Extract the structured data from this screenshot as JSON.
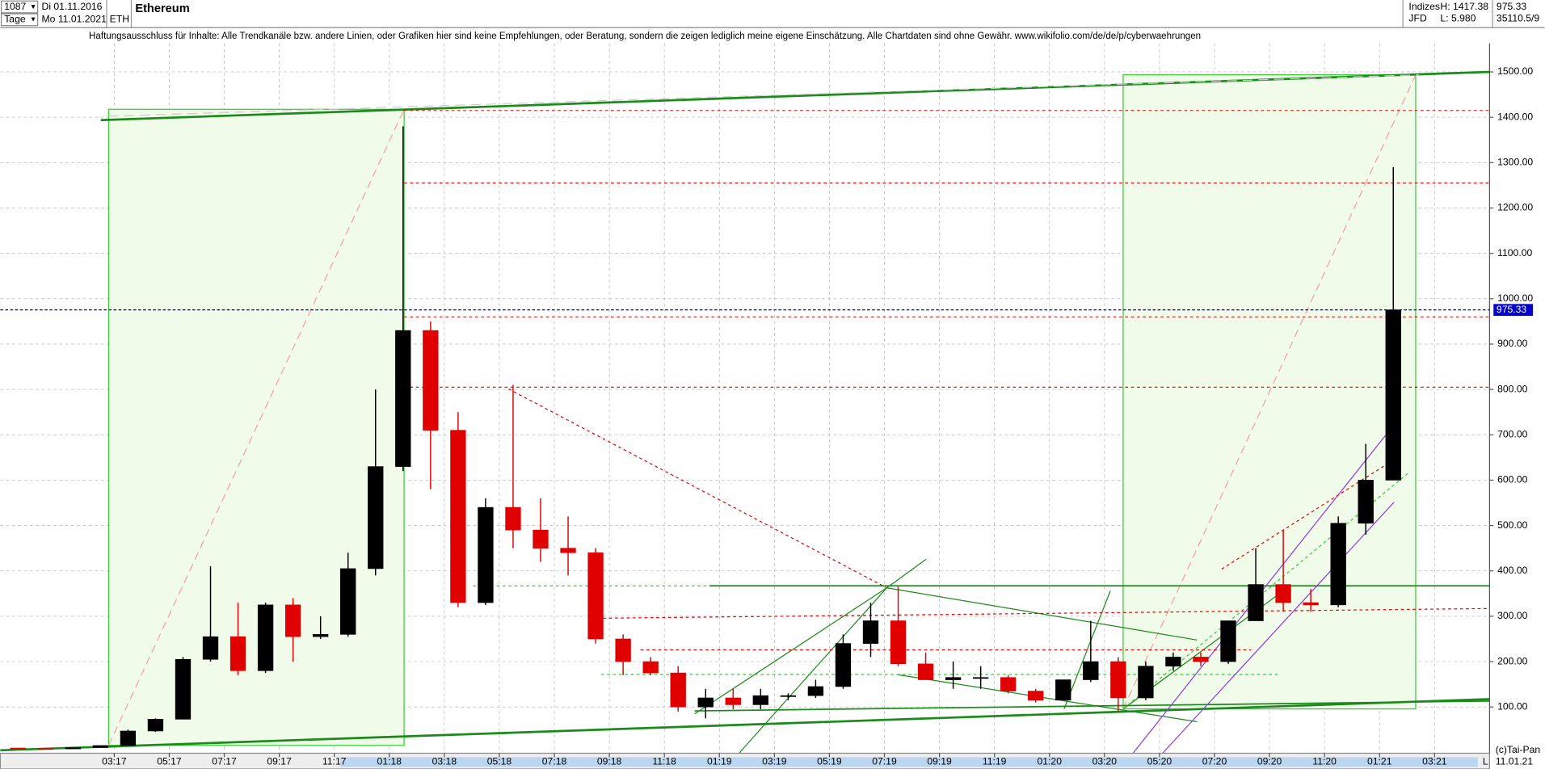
{
  "header": {
    "count": "1087",
    "date_from": "Di 01.11.2016",
    "unit": "Tage",
    "date_to": "Mo 11.01.2021",
    "symbol": "ETH",
    "category": "Indizes",
    "exchange": "JFD",
    "high": "H: 1417.38",
    "low": "L: 5.980",
    "last": "975.33",
    "volume": "35110.5/9"
  },
  "disclaimer": "Haftungsausschluss für Inhalte: Alle Trendkanäle bzw. andere Linien, oder Grafiken hier sind keine Empfehlungen, oder Beratung, sondern die zeigen lediglich meine eigene Einschätzung. Alle Chartdaten sind ohne Gewähr.  www.wikifolio.com/de/de/p/cyberwaehrungen",
  "footer": {
    "brand": "(c)Tai-Pan",
    "date": "11.01.21",
    "scale": "L"
  },
  "chart_data": {
    "type": "candlestick",
    "title": "Ethereum",
    "x": [
      "2016-11",
      "2016-12",
      "2017-01",
      "2017-02",
      "2017-03",
      "2017-04",
      "2017-05",
      "2017-06",
      "2017-07",
      "2017-08",
      "2017-09",
      "2017-10",
      "2017-11",
      "2017-12",
      "2018-01",
      "2018-02",
      "2018-03",
      "2018-04",
      "2018-05",
      "2018-06",
      "2018-07",
      "2018-08",
      "2018-09",
      "2018-10",
      "2018-11",
      "2018-12",
      "2019-01",
      "2019-02",
      "2019-03",
      "2019-04",
      "2019-05",
      "2019-06",
      "2019-07",
      "2019-08",
      "2019-09",
      "2019-10",
      "2019-11",
      "2019-12",
      "2020-01",
      "2020-02",
      "2020-03",
      "2020-04",
      "2020-05",
      "2020-06",
      "2020-07",
      "2020-08",
      "2020-09",
      "2020-10",
      "2020-11",
      "2020-12",
      "2021-01"
    ],
    "open": [
      9.5,
      8.5,
      7.6,
      10.5,
      15,
      47,
      73,
      205,
      255,
      180,
      325,
      255,
      260,
      405,
      630,
      930,
      710,
      330,
      540,
      490,
      450,
      440,
      250,
      200,
      175,
      100,
      120,
      105,
      125,
      125,
      145,
      240,
      290,
      195,
      160,
      165,
      165,
      135,
      115,
      160,
      200,
      120,
      190,
      210,
      200,
      290,
      370,
      330,
      325,
      505,
      600
    ],
    "high": [
      10,
      9,
      11,
      15,
      50,
      75,
      210,
      410,
      330,
      330,
      340,
      300,
      440,
      800,
      1380,
      950,
      750,
      560,
      810,
      560,
      520,
      450,
      260,
      210,
      190,
      140,
      140,
      140,
      130,
      160,
      260,
      330,
      365,
      220,
      200,
      190,
      170,
      140,
      160,
      290,
      210,
      200,
      220,
      220,
      290,
      450,
      490,
      360,
      520,
      680,
      1290
    ],
    "low": [
      8.5,
      6,
      7.6,
      10.3,
      15,
      45,
      73,
      200,
      170,
      175,
      200,
      250,
      255,
      390,
      620,
      580,
      320,
      325,
      450,
      420,
      390,
      240,
      170,
      170,
      90,
      75,
      95,
      95,
      115,
      120,
      140,
      210,
      190,
      160,
      140,
      140,
      130,
      110,
      115,
      155,
      90,
      115,
      180,
      190,
      195,
      290,
      310,
      310,
      320,
      480,
      600
    ],
    "close": [
      8.5,
      7.6,
      10.5,
      15,
      47,
      73,
      205,
      255,
      180,
      325,
      255,
      260,
      405,
      630,
      930,
      710,
      330,
      540,
      490,
      450,
      440,
      250,
      200,
      175,
      100,
      120,
      105,
      125,
      125,
      145,
      240,
      290,
      195,
      160,
      165,
      165,
      135,
      115,
      160,
      200,
      120,
      190,
      210,
      200,
      290,
      370,
      330,
      325,
      505,
      600,
      975.33
    ],
    "up_color": "#000000",
    "down_color": "#e00000",
    "xlim": [
      "2016-11",
      "2021-05"
    ],
    "xticks": [
      {
        "value": "2017-03",
        "label": "03:17"
      },
      {
        "value": "2017-05",
        "label": "05:17"
      },
      {
        "value": "2017-07",
        "label": "07:17"
      },
      {
        "value": "2017-09",
        "label": "09:17"
      },
      {
        "value": "2017-11",
        "label": "11:17"
      },
      {
        "value": "2018-01",
        "label": "01:18"
      },
      {
        "value": "2018-03",
        "label": "03:18"
      },
      {
        "value": "2018-05",
        "label": "05:18"
      },
      {
        "value": "2018-07",
        "label": "07:18"
      },
      {
        "value": "2018-09",
        "label": "09:18"
      },
      {
        "value": "2018-11",
        "label": "11:18"
      },
      {
        "value": "2019-01",
        "label": "01:19"
      },
      {
        "value": "2019-03",
        "label": "03:19"
      },
      {
        "value": "2019-05",
        "label": "05:19"
      },
      {
        "value": "2019-07",
        "label": "07:19"
      },
      {
        "value": "2019-09",
        "label": "09:19"
      },
      {
        "value": "2019-11",
        "label": "11:19"
      },
      {
        "value": "2020-01",
        "label": "01:20"
      },
      {
        "value": "2020-03",
        "label": "03:20"
      },
      {
        "value": "2020-05",
        "label": "05:20"
      },
      {
        "value": "2020-07",
        "label": "07:20"
      },
      {
        "value": "2020-09",
        "label": "09:20"
      },
      {
        "value": "2020-11",
        "label": "11:20"
      },
      {
        "value": "2021-01",
        "label": "01:21"
      },
      {
        "value": "2021-03",
        "label": "03:21"
      }
    ],
    "ylim": [
      -2,
      1563
    ],
    "yticks": [
      {
        "value": 100,
        "label": "100.00"
      },
      {
        "value": 200,
        "label": "200.00"
      },
      {
        "value": 300,
        "label": "300.00"
      },
      {
        "value": 400,
        "label": "400.00"
      },
      {
        "value": 500,
        "label": "500.00"
      },
      {
        "value": 600,
        "label": "600.00"
      },
      {
        "value": 700,
        "label": "700.00"
      },
      {
        "value": 800,
        "label": "800.00"
      },
      {
        "value": 900,
        "label": "900.00"
      },
      {
        "value": 1000,
        "label": "1000.00"
      },
      {
        "value": 1100,
        "label": "1100.00"
      },
      {
        "value": 1200,
        "label": "1200.00"
      },
      {
        "value": 1300,
        "label": "1300.00"
      },
      {
        "value": 1400,
        "label": "1400.00"
      },
      {
        "value": 1500,
        "label": "1500.00"
      }
    ],
    "grid": true,
    "last_price": {
      "value": 975.33,
      "label": "975.33",
      "color": "#0000cc"
    },
    "levels": {
      "color": "#e00000",
      "values": [
        1415,
        1255,
        960,
        805
      ]
    }
  }
}
